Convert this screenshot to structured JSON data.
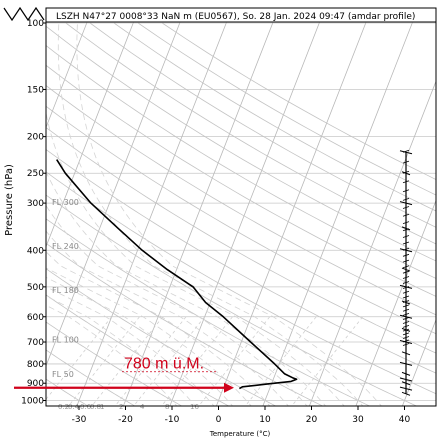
{
  "chart_data": {
    "type": "line",
    "title": "LSZH N47°27 0008°33 NaN m (EU0567), So. 28 Jan. 2024 09:47 (amdar profile)",
    "xlabel": "Temperature (°C)",
    "ylabel": "Pressure (hPa)",
    "x_ticks": [
      -30,
      -20,
      -10,
      0,
      10,
      20,
      30,
      40
    ],
    "y_ticks": [
      100,
      150,
      200,
      250,
      300,
      400,
      500,
      600,
      700,
      800,
      900,
      1000
    ],
    "xlim": [
      -36,
      44
    ],
    "ylim": [
      1050,
      100
    ],
    "y_scale": "log",
    "flight_levels": [
      "FL 300",
      "FL 240",
      "FL 180",
      "FL 100",
      "FL 50"
    ],
    "mixing_ratio_labels": [
      "0.2",
      "0.4",
      "0.6",
      "0.8",
      "1",
      "2",
      "4",
      "8",
      "16"
    ],
    "series": [
      {
        "color": "#000000",
        "points": [
          {
            "p": 230,
            "t": -55
          },
          {
            "p": 250,
            "t": -52
          },
          {
            "p": 300,
            "t": -44
          },
          {
            "p": 350,
            "t": -36
          },
          {
            "p": 400,
            "t": -29
          },
          {
            "p": 450,
            "t": -22
          },
          {
            "p": 500,
            "t": -15
          },
          {
            "p": 550,
            "t": -11
          },
          {
            "p": 600,
            "t": -6
          },
          {
            "p": 700,
            "t": 2
          },
          {
            "p": 800,
            "t": 9
          },
          {
            "p": 850,
            "t": 12
          },
          {
            "p": 870,
            "t": 14
          },
          {
            "p": 878,
            "t": 15
          },
          {
            "p": 890,
            "t": 14
          },
          {
            "p": 905,
            "t": 9
          },
          {
            "p": 920,
            "t": 4
          },
          {
            "p": 930,
            "t": 3.5
          }
        ]
      }
    ],
    "annotation": {
      "text": "780 m ü.M.",
      "color": "#d0021b",
      "p": 925
    },
    "wind_column_pressures": [
      220,
      250,
      300,
      350,
      400,
      450,
      500,
      550,
      600,
      650,
      700,
      750,
      800,
      850,
      880,
      900,
      930,
      960
    ]
  }
}
